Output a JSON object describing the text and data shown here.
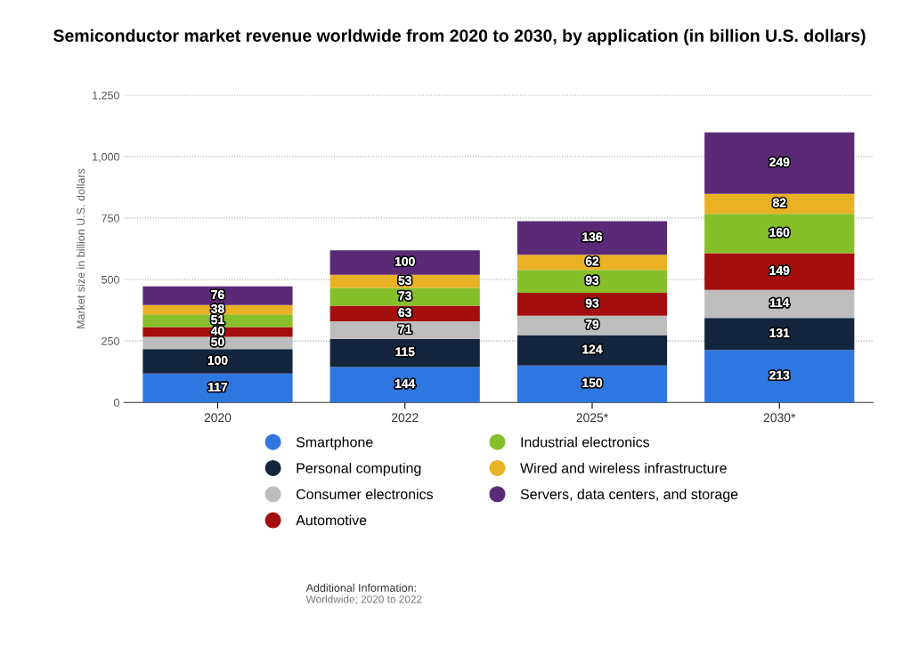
{
  "chart_data": {
    "type": "bar",
    "title": "Semiconductor market revenue worldwide from 2020 to 2030, by application (in billion U.S. dollars)",
    "ylabel": "Market size in billion U.S. dollars",
    "categories": [
      "2020",
      "2022",
      "2025*",
      "2030*"
    ],
    "stacked": true,
    "data_labels": true,
    "grid": "y",
    "legend": "bottom",
    "ylim": [
      0,
      1250
    ],
    "yticks": [
      0,
      {
        "value": 250,
        "label": "250"
      },
      {
        "value": 500,
        "label": "500"
      },
      {
        "value": 750,
        "label": "750"
      },
      {
        "value": 1000,
        "label": "1,000"
      },
      {
        "value": 1250,
        "label": "1,250"
      }
    ],
    "series": [
      {
        "name": "Smartphone",
        "color": "#2f77e0",
        "values": [
          117,
          144,
          150,
          213
        ]
      },
      {
        "name": "Personal computing",
        "color": "#14263d",
        "values": [
          100,
          115,
          124,
          131
        ]
      },
      {
        "name": "Consumer electronics",
        "color": "#bdbdbd",
        "values": [
          50,
          71,
          79,
          114
        ]
      },
      {
        "name": "Automotive",
        "color": "#a50e0e",
        "values": [
          40,
          63,
          93,
          149
        ]
      },
      {
        "name": "Industrial electronics",
        "color": "#86bf2a",
        "values": [
          51,
          73,
          93,
          160
        ]
      },
      {
        "name": "Wired and wireless infrastructure",
        "color": "#ebb124",
        "values": [
          38,
          53,
          62,
          82
        ]
      },
      {
        "name": "Servers, data centers, and storage",
        "color": "#5b2a76",
        "values": [
          76,
          100,
          136,
          249
        ]
      }
    ],
    "annotations": [
      "Additional Information:",
      "Worldwide; 2020 to 2022"
    ]
  }
}
